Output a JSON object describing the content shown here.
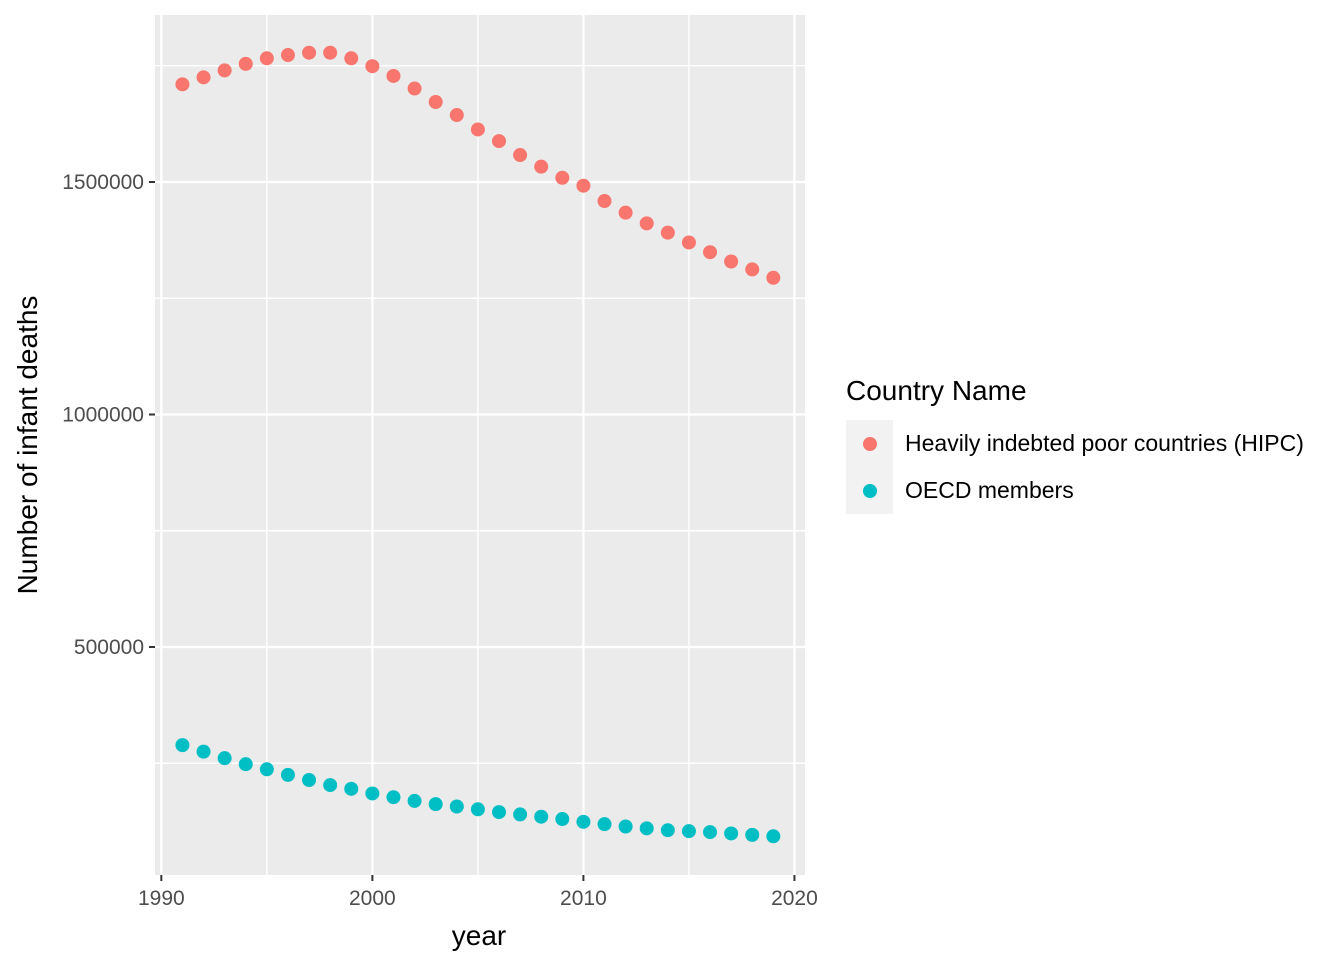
{
  "chart_data": {
    "type": "scatter",
    "title": "",
    "xlabel": "year",
    "ylabel": "Number of infant deaths",
    "legend_title": "Country Name",
    "legend_position": "right",
    "grid": true,
    "panel_bg": "#EBEBEB",
    "grid_color": "#FFFFFF",
    "legend_key_bg": "#F2F2F2",
    "tick_color": "#333333",
    "tick_label_color": "#4D4D4D",
    "xlim": [
      1989.7,
      2020.5
    ],
    "ylim": [
      9700,
      1859100
    ],
    "x_ticks": [
      1990,
      2000,
      2010,
      2020
    ],
    "x_tick_labels": [
      "1990",
      "2000",
      "2010",
      "2020"
    ],
    "x_minor_ticks": [
      1995,
      2005,
      2015
    ],
    "y_ticks": [
      500000,
      1000000,
      1500000
    ],
    "y_tick_labels": [
      "500000",
      "1000000",
      "1500000"
    ],
    "y_minor_ticks": [
      250000,
      750000,
      1250000,
      1750000
    ],
    "x": [
      1991,
      1992,
      1993,
      1994,
      1995,
      1996,
      1997,
      1998,
      1999,
      2000,
      2001,
      2002,
      2003,
      2004,
      2005,
      2006,
      2007,
      2008,
      2009,
      2010,
      2011,
      2012,
      2013,
      2014,
      2015,
      2016,
      2017,
      2018,
      2019
    ],
    "series": [
      {
        "name": "Heavily indebted poor countries (HIPC)",
        "color": "#F8766D",
        "values": [
          1710000,
          1725000,
          1740000,
          1754000,
          1766000,
          1773000,
          1778000,
          1778000,
          1766000,
          1749000,
          1728000,
          1701000,
          1672000,
          1644000,
          1613000,
          1588000,
          1558000,
          1533000,
          1509000,
          1492000,
          1459000,
          1434000,
          1411000,
          1391000,
          1370000,
          1349000,
          1329000,
          1312000,
          1294000
        ]
      },
      {
        "name": "OECD members",
        "color": "#00BFC4",
        "values": [
          289000,
          275000,
          261000,
          248000,
          237000,
          225000,
          214000,
          203000,
          195000,
          185000,
          177000,
          169000,
          162000,
          157000,
          151000,
          145000,
          140000,
          135000,
          130000,
          124000,
          119000,
          114000,
          110000,
          106000,
          104000,
          102000,
          99000,
          96000,
          93000
        ]
      }
    ]
  }
}
